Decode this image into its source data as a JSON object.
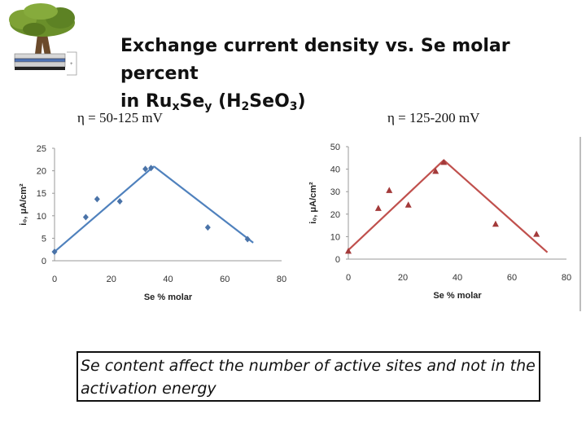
{
  "title": {
    "line1": "Exchange current density vs. Se molar percent",
    "line2_a": "in Ru",
    "line2_sub1": "x",
    "line2_b": "Se",
    "line2_sub2": "y",
    "line2_c": " (H",
    "line2_sub3": "2",
    "line2_d": "SeO",
    "line2_sub4": "3",
    "line2_e": ")"
  },
  "note": "Se content affect the number of active sites and not in the activation energy",
  "chart_data": [
    {
      "type": "scatter",
      "heading": "η = 50-125 mV",
      "xlabel": "Se % molar",
      "ylabel": "i₀, μA/cm²",
      "xlim": [
        0,
        80
      ],
      "ylim": [
        0,
        25
      ],
      "xticks": [
        0,
        20,
        40,
        60,
        80
      ],
      "yticks": [
        0,
        5,
        10,
        15,
        20,
        25
      ],
      "marker": "diamond",
      "marker_color": "#4a73a8",
      "line_color": "#4f81bd",
      "points": [
        [
          0,
          2
        ],
        [
          11,
          9.7
        ],
        [
          15,
          13.7
        ],
        [
          23,
          13.2
        ],
        [
          32,
          20.4
        ],
        [
          34,
          20.6
        ],
        [
          54,
          7.4
        ],
        [
          68,
          4.8
        ]
      ],
      "fit_lines": [
        [
          [
            0,
            2
          ],
          [
            35,
            21
          ]
        ],
        [
          [
            35,
            21
          ],
          [
            70,
            4
          ]
        ]
      ]
    },
    {
      "type": "scatter",
      "heading": "η = 125-200 mV",
      "xlabel": "Se % molar",
      "ylabel": "i₀, μA/cm²",
      "xlim": [
        0,
        80
      ],
      "ylim": [
        0,
        50
      ],
      "xticks": [
        0,
        20,
        40,
        60,
        80
      ],
      "yticks": [
        0,
        10,
        20,
        30,
        40,
        50
      ],
      "marker": "triangle",
      "marker_color": "#a33a3a",
      "line_color": "#c0504d",
      "points": [
        [
          0,
          3.5
        ],
        [
          11,
          22.5
        ],
        [
          15,
          30.5
        ],
        [
          22,
          24
        ],
        [
          32,
          39
        ],
        [
          35,
          43
        ],
        [
          54,
          15.5
        ],
        [
          69,
          11
        ]
      ],
      "fit_lines": [
        [
          [
            0,
            4
          ],
          [
            35,
            44
          ]
        ],
        [
          [
            35,
            44
          ],
          [
            73,
            3
          ]
        ]
      ]
    }
  ]
}
